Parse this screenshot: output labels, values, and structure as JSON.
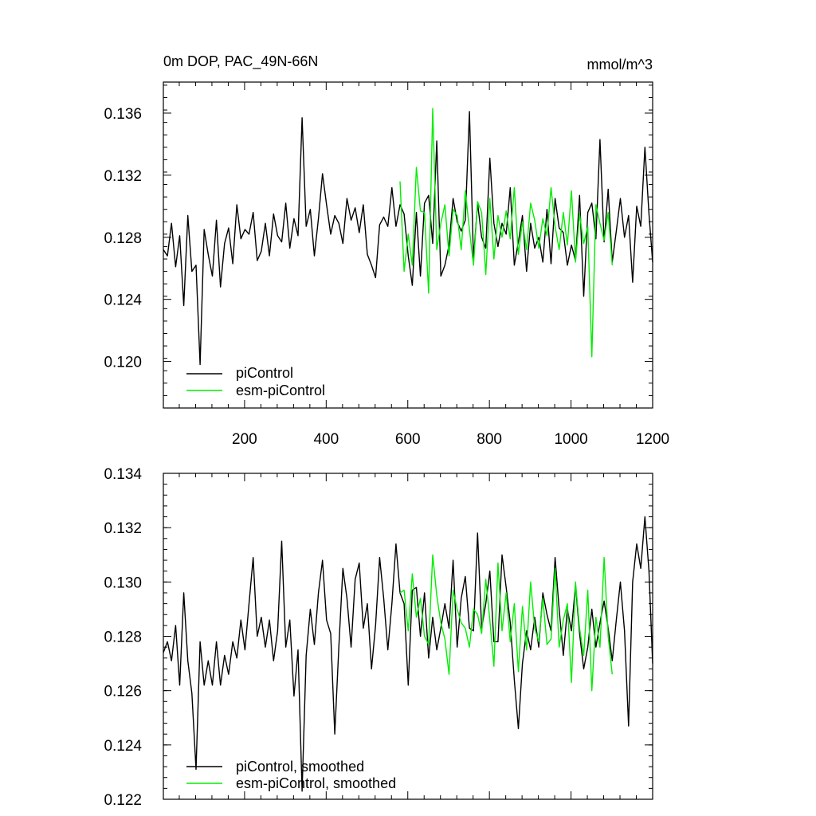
{
  "chart_data": [
    {
      "type": "line",
      "title": "0m DOP, PAC_49N-66N",
      "units": "mmol/m^3",
      "xlim": [
        1,
        1200
      ],
      "ylim": [
        0.117,
        0.138
      ],
      "x_ticks": [
        200,
        400,
        600,
        800,
        1000,
        1200
      ],
      "x_tick_labels": [
        "200",
        "400",
        "600",
        "800",
        "1000",
        "1200"
      ],
      "y_ticks": [
        0.12,
        0.124,
        0.128,
        0.132,
        0.136
      ],
      "y_tick_labels": [
        "0.120",
        "0.124",
        "0.128",
        "0.132",
        "0.136"
      ],
      "legend": [
        "piControl",
        "esm-piControl"
      ],
      "legend_position": "bottom-left",
      "colors": [
        "#000000",
        "#00ee00"
      ],
      "series": [
        {
          "name": "piControl",
          "color": "#000000",
          "x_start": 1,
          "x_step": 10,
          "values": [
            0.1272,
            0.1268,
            0.1289,
            0.1261,
            0.1281,
            0.1236,
            0.1294,
            0.1258,
            0.1262,
            0.1198,
            0.1285,
            0.1269,
            0.1255,
            0.1291,
            0.1248,
            0.1276,
            0.1286,
            0.1263,
            0.1301,
            0.1279,
            0.1285,
            0.1282,
            0.1296,
            0.1265,
            0.1271,
            0.1289,
            0.1268,
            0.1295,
            0.1281,
            0.1277,
            0.1302,
            0.1273,
            0.1292,
            0.1281,
            0.1357,
            0.1287,
            0.1298,
            0.1268,
            0.1292,
            0.1321,
            0.1301,
            0.1282,
            0.1294,
            0.1289,
            0.1276,
            0.1305,
            0.1291,
            0.1299,
            0.1283,
            0.1301,
            0.1269,
            0.1262,
            0.1254,
            0.1288,
            0.1293,
            0.1287,
            0.1312,
            0.1287,
            0.1301,
            0.1295,
            0.1268,
            0.1249,
            0.1296,
            0.1255,
            0.1302,
            0.1307,
            0.1276,
            0.1342,
            0.1255,
            0.1262,
            0.1275,
            0.1305,
            0.129,
            0.1284,
            0.1291,
            0.1361,
            0.1266,
            0.1302,
            0.128,
            0.1273,
            0.1331,
            0.1289,
            0.1274,
            0.1289,
            0.1282,
            0.1312,
            0.1262,
            0.1277,
            0.1294,
            0.1258,
            0.1289,
            0.1273,
            0.128,
            0.1264,
            0.1298,
            0.1263,
            0.1305,
            0.1286,
            0.1283,
            0.1262,
            0.1275,
            0.1265,
            0.1307,
            0.1242,
            0.1296,
            0.1302,
            0.1279,
            0.1343,
            0.1277,
            0.1311,
            0.1264,
            0.1284,
            0.1305,
            0.128,
            0.1294,
            0.1251,
            0.13,
            0.1287,
            0.1338,
            0.1295,
            0.1264
          ]
        },
        {
          "name": "esm-piControl",
          "color": "#00ee00",
          "x_start": 581,
          "x_step": 10,
          "values": [
            0.1316,
            0.1258,
            0.1282,
            0.1262,
            0.1325,
            0.1297,
            0.1296,
            0.1244,
            0.1363,
            0.1272,
            0.1289,
            0.1301,
            0.1268,
            0.1298,
            0.1294,
            0.1272,
            0.131,
            0.1285,
            0.1262,
            0.1303,
            0.1296,
            0.1256,
            0.1305,
            0.1266,
            0.1294,
            0.128,
            0.1297,
            0.1279,
            0.1312,
            0.1269,
            0.129,
            0.1272,
            0.1302,
            0.1291,
            0.1273,
            0.1292,
            0.1281,
            0.1312,
            0.1287,
            0.1272,
            0.1296,
            0.1275,
            0.131,
            0.1264,
            0.1295,
            0.1276,
            0.1287,
            0.1203,
            0.1301,
            0.1289,
            0.1278,
            0.1296,
            0.1262
          ]
        }
      ]
    },
    {
      "type": "line",
      "title": "",
      "xlim": [
        1,
        1200
      ],
      "ylim": [
        0.122,
        0.134
      ],
      "y_ticks": [
        0.122,
        0.124,
        0.126,
        0.128,
        0.13,
        0.132,
        0.134
      ],
      "y_tick_labels": [
        "0.122",
        "0.124",
        "0.126",
        "0.128",
        "0.130",
        "0.132",
        "0.134"
      ],
      "legend": [
        "piControl, smoothed",
        "esm-piControl, smoothed"
      ],
      "legend_position": "bottom-left",
      "colors": [
        "#000000",
        "#00ee00"
      ],
      "series": [
        {
          "name": "piControl, smoothed",
          "color": "#000000",
          "x_start": 1,
          "x_step": 10,
          "values": [
            0.1274,
            0.1278,
            0.1271,
            0.1284,
            0.1262,
            0.1296,
            0.1271,
            0.1259,
            0.1231,
            0.1278,
            0.1262,
            0.1271,
            0.1262,
            0.1278,
            0.1262,
            0.1273,
            0.1266,
            0.1278,
            0.1272,
            0.1286,
            0.1275,
            0.1292,
            0.1309,
            0.128,
            0.1287,
            0.1276,
            0.1286,
            0.1271,
            0.1282,
            0.1315,
            0.1276,
            0.1286,
            0.1258,
            0.1275,
            0.1223,
            0.1273,
            0.129,
            0.1277,
            0.1296,
            0.1308,
            0.1286,
            0.1281,
            0.1244,
            0.1276,
            0.1305,
            0.1294,
            0.1276,
            0.1301,
            0.1307,
            0.1283,
            0.1292,
            0.1268,
            0.1284,
            0.1309,
            0.1294,
            0.1275,
            0.1292,
            0.1314,
            0.1296,
            0.1292,
            0.1262,
            0.1297,
            0.1298,
            0.128,
            0.1296,
            0.1272,
            0.1287,
            0.1275,
            0.1283,
            0.1292,
            0.1283,
            0.1308,
            0.1276,
            0.1294,
            0.1302,
            0.1283,
            0.1282,
            0.1318,
            0.1283,
            0.1292,
            0.1304,
            0.1278,
            0.1278,
            0.131,
            0.1298,
            0.1285,
            0.1264,
            0.1246,
            0.127,
            0.1282,
            0.1275,
            0.1287,
            0.1276,
            0.1296,
            0.1288,
            0.1282,
            0.1309,
            0.129,
            0.1273,
            0.129,
            0.1282,
            0.1299,
            0.1281,
            0.1268,
            0.1276,
            0.129,
            0.1276,
            0.1285,
            0.1293,
            0.1283,
            0.1271,
            0.1286,
            0.13,
            0.1282,
            0.1247,
            0.13,
            0.1314,
            0.1305,
            0.1324,
            0.1304,
            0.127
          ]
        },
        {
          "name": "esm-piControl, smoothed",
          "color": "#00ee00",
          "x_start": 581,
          "x_step": 10,
          "values": [
            0.1296,
            0.1297,
            0.1282,
            0.1303,
            0.1287,
            0.1294,
            0.128,
            0.1277,
            0.131,
            0.1295,
            0.1285,
            0.1279,
            0.1266,
            0.1297,
            0.129,
            0.1285,
            0.1283,
            0.1276,
            0.129,
            0.1288,
            0.1281,
            0.1301,
            0.1286,
            0.1269,
            0.1307,
            0.1282,
            0.1296,
            0.1278,
            0.1292,
            0.1267,
            0.1291,
            0.1275,
            0.13,
            0.1283,
            0.1278,
            0.1294,
            0.1277,
            0.1279,
            0.1305,
            0.1276,
            0.1286,
            0.1292,
            0.1263,
            0.13,
            0.1283,
            0.1273,
            0.1297,
            0.126,
            0.1287,
            0.1276,
            0.1309,
            0.128,
            0.1266
          ]
        }
      ]
    }
  ]
}
